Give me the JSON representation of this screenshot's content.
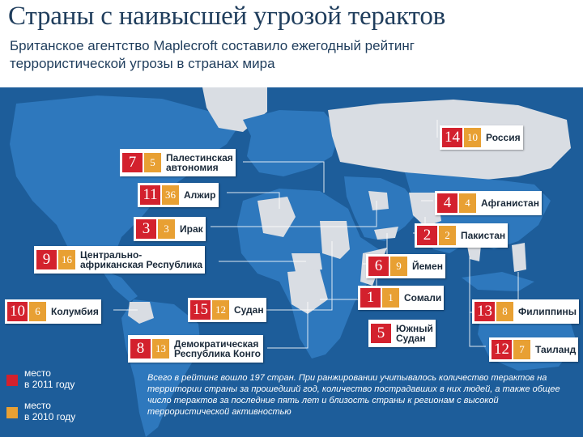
{
  "header": {
    "title": "Страны с наивысшей угрозой терактов",
    "subtitle": "Британское агентство Maplecroft составило ежегодный рейтинг террористической угрозы в странах мира"
  },
  "colors": {
    "ocean": "#1d5d9a",
    "land": "#d9dde3",
    "rank_2011": "#d3212d",
    "rank_2010": "#e8a033",
    "title_text": "#1f3d5c"
  },
  "countries": [
    {
      "name": "Россия",
      "rank_2011": "14",
      "rank_2010": "10"
    },
    {
      "name": "Палестинская\nавтономия",
      "rank_2011": "7",
      "rank_2010": "5"
    },
    {
      "name": "Алжир",
      "rank_2011": "11",
      "rank_2010": "36"
    },
    {
      "name": "Ирак",
      "rank_2011": "3",
      "rank_2010": "3"
    },
    {
      "name": "Центрально-\nафриканская Республика",
      "rank_2011": "9",
      "rank_2010": "16"
    },
    {
      "name": "Афганистан",
      "rank_2011": "4",
      "rank_2010": "4"
    },
    {
      "name": "Пакистан",
      "rank_2011": "2",
      "rank_2010": "2"
    },
    {
      "name": "Йемен",
      "rank_2011": "6",
      "rank_2010": "9"
    },
    {
      "name": "Сомали",
      "rank_2011": "1",
      "rank_2010": "1"
    },
    {
      "name": "Колумбия",
      "rank_2011": "10",
      "rank_2010": "6"
    },
    {
      "name": "Судан",
      "rank_2011": "15",
      "rank_2010": "12"
    },
    {
      "name": "Южный\nСудан",
      "rank_2011": "5",
      "rank_2010": ""
    },
    {
      "name": "Филиппины",
      "rank_2011": "13",
      "rank_2010": "8"
    },
    {
      "name": "Демократическая\nРеспублика Конго",
      "rank_2011": "8",
      "rank_2010": "13"
    },
    {
      "name": "Таиланд",
      "rank_2011": "12",
      "rank_2010": "7"
    }
  ],
  "legend": {
    "rank_2011_label": "место\nв 2011 году",
    "rank_2010_label": "место\nв 2010 году"
  },
  "note": "Всего в рейтинг вошло 197 стран. При ранжировании учитывалось количество терактов на территории страны за прошедший год, количество пострадавших в них людей, а также общее число терактов за последние пять лет и близость страны к регионам с высокой террористической активностью"
}
